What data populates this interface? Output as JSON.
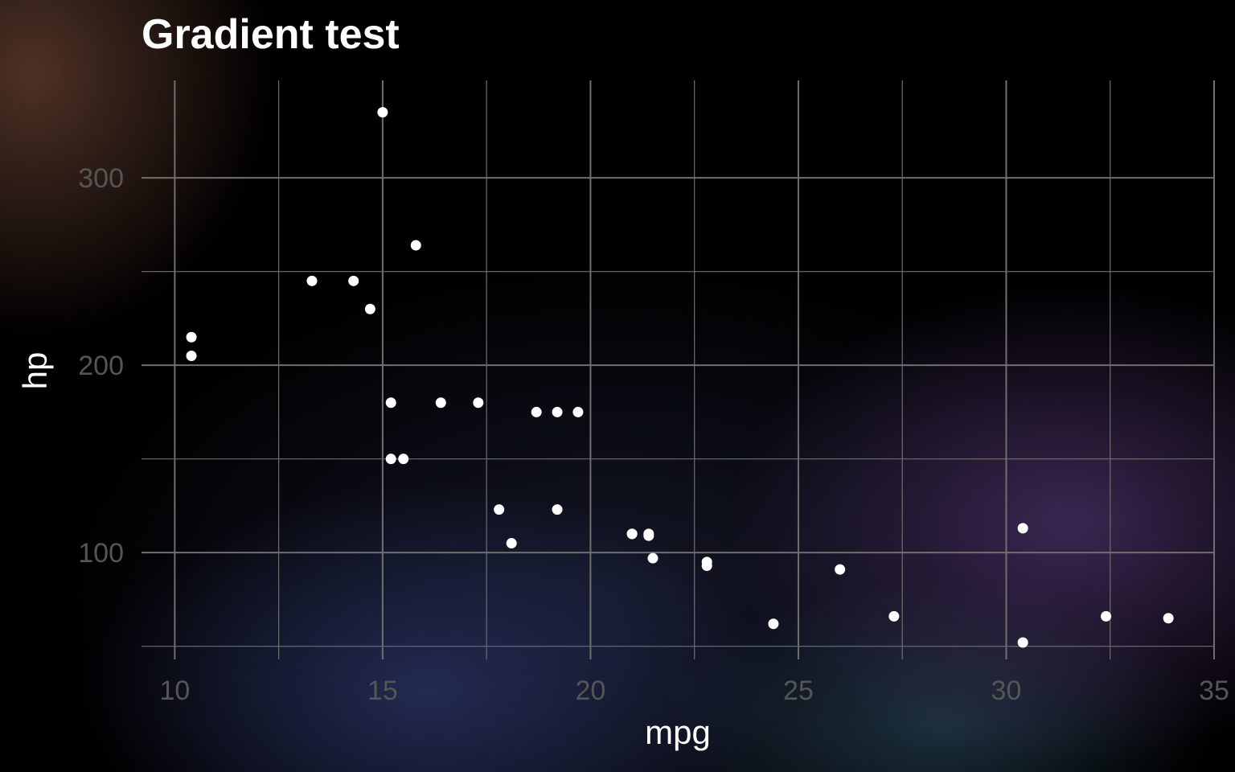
{
  "chart_data": {
    "type": "scatter",
    "title": "Gradient test",
    "xlabel": "mpg",
    "ylabel": "hp",
    "xlim": [
      9.2,
      35
    ],
    "ylim": [
      43,
      352
    ],
    "xticks": [
      10,
      15,
      20,
      25,
      30,
      35
    ],
    "yticks": [
      100,
      200,
      300
    ],
    "x_minor_ticks": [
      12.5,
      17.5,
      22.5,
      27.5,
      32.5
    ],
    "y_minor_ticks": [
      50,
      150,
      250
    ],
    "grid": true,
    "legend": "none",
    "point_color": "#ffffff",
    "series": [
      {
        "x": [
          21.0,
          21.0,
          22.8,
          21.4,
          18.7,
          18.1,
          14.3,
          24.4,
          22.8,
          19.2,
          17.8,
          16.4,
          17.3,
          15.2,
          10.4,
          10.4,
          14.7,
          32.4,
          30.4,
          33.9,
          21.5,
          15.5,
          15.2,
          13.3,
          19.2,
          27.3,
          26.0,
          30.4,
          15.8,
          19.7,
          15.0,
          21.4
        ],
        "y": [
          110,
          110,
          93,
          110,
          175,
          105,
          245,
          62,
          95,
          123,
          123,
          180,
          180,
          180,
          205,
          215,
          230,
          66,
          52,
          65,
          97,
          150,
          150,
          245,
          175,
          66,
          91,
          113,
          264,
          175,
          335,
          109
        ]
      }
    ]
  }
}
